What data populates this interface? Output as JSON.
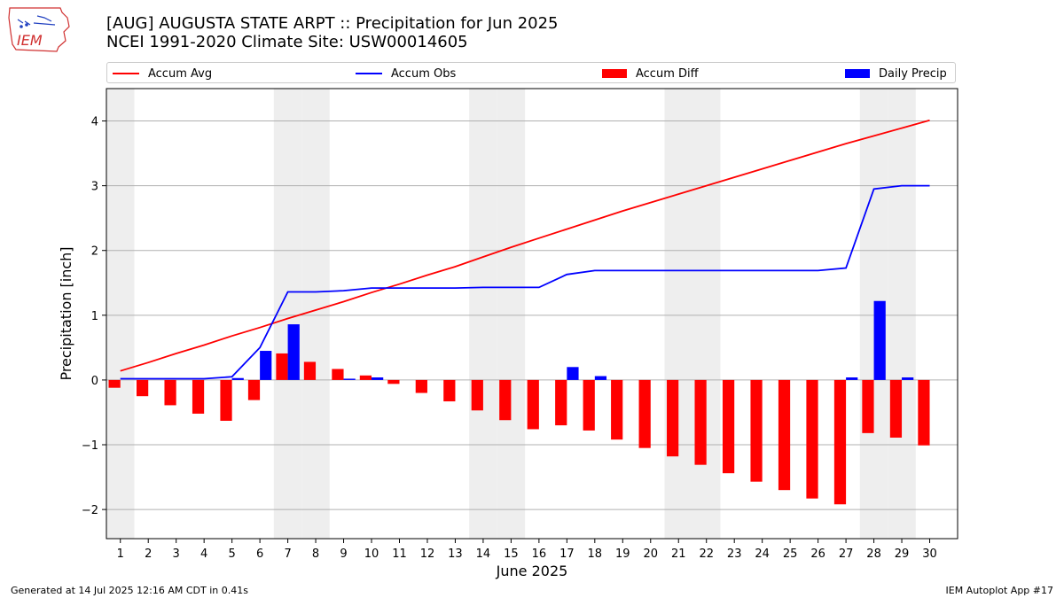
{
  "header": {
    "logo_text": "IEM",
    "title_line1": "[AUG] AUGUSTA STATE ARPT :: Precipitation for Jun 2025",
    "title_line2": "NCEI 1991-2020 Climate Site: USW00014605"
  },
  "legend": {
    "items": [
      {
        "label": "Accum Avg",
        "color": "#ff0000",
        "kind": "line"
      },
      {
        "label": "Accum Obs",
        "color": "#0000ff",
        "kind": "line"
      },
      {
        "label": "Accum Diff",
        "color": "#ff0000",
        "kind": "box"
      },
      {
        "label": "Daily Precip",
        "color": "#0000ff",
        "kind": "box"
      }
    ]
  },
  "chart_data": {
    "type": "bar",
    "xlabel": "June 2025",
    "ylabel": "Precipitation [inch]",
    "ylim": [
      -2.45,
      4.5
    ],
    "yticks": [
      -2,
      -1,
      0,
      1,
      2,
      3,
      4
    ],
    "ytick_labels": [
      "−2",
      "−1",
      "0",
      "1",
      "2",
      "3",
      "4"
    ],
    "grid": "horizontal",
    "weekend_shading": true,
    "days": [
      1,
      2,
      3,
      4,
      5,
      6,
      7,
      8,
      9,
      10,
      11,
      12,
      13,
      14,
      15,
      16,
      17,
      18,
      19,
      20,
      21,
      22,
      23,
      24,
      25,
      26,
      27,
      28,
      29,
      30
    ],
    "weekend_days": [
      1,
      7,
      8,
      14,
      15,
      21,
      22,
      28,
      29
    ],
    "series": [
      {
        "name": "Accum Avg",
        "type": "line",
        "color": "#ff0000",
        "values": [
          0.14,
          0.27,
          0.41,
          0.54,
          0.68,
          0.81,
          0.95,
          1.08,
          1.21,
          1.35,
          1.48,
          1.62,
          1.75,
          1.9,
          2.05,
          2.19,
          2.33,
          2.47,
          2.61,
          2.74,
          2.87,
          3.0,
          3.13,
          3.26,
          3.39,
          3.52,
          3.65,
          3.77,
          3.89,
          4.01
        ]
      },
      {
        "name": "Accum Obs",
        "type": "line",
        "color": "#0000ff",
        "values": [
          0.02,
          0.02,
          0.02,
          0.02,
          0.05,
          0.5,
          1.36,
          1.36,
          1.38,
          1.42,
          1.42,
          1.42,
          1.42,
          1.43,
          1.43,
          1.43,
          1.63,
          1.69,
          1.69,
          1.69,
          1.69,
          1.69,
          1.69,
          1.69,
          1.69,
          1.69,
          1.73,
          2.95,
          3.0,
          3.0
        ]
      },
      {
        "name": "Accum Diff",
        "type": "bar",
        "color": "#ff0000",
        "values": [
          -0.12,
          -0.25,
          -0.39,
          -0.52,
          -0.63,
          -0.31,
          0.41,
          0.28,
          0.17,
          0.07,
          -0.06,
          -0.2,
          -0.33,
          -0.47,
          -0.62,
          -0.76,
          -0.7,
          -0.78,
          -0.92,
          -1.05,
          -1.18,
          -1.31,
          -1.44,
          -1.57,
          -1.7,
          -1.83,
          -1.92,
          -0.82,
          -0.89,
          -1.01
        ]
      },
      {
        "name": "Daily Precip",
        "type": "bar",
        "color": "#0000ff",
        "values": [
          0,
          0,
          0,
          0,
          0.03,
          0.45,
          0.86,
          0,
          0.02,
          0.04,
          0,
          0,
          0,
          0,
          0,
          0,
          0.2,
          0.06,
          0,
          0,
          0,
          0,
          0,
          0,
          0,
          0,
          0.04,
          1.22,
          0.04,
          0
        ]
      }
    ]
  },
  "footer": {
    "left": "Generated at 14 Jul 2025 12:16 AM CDT in 0.41s",
    "right": "IEM Autoplot App #17"
  }
}
